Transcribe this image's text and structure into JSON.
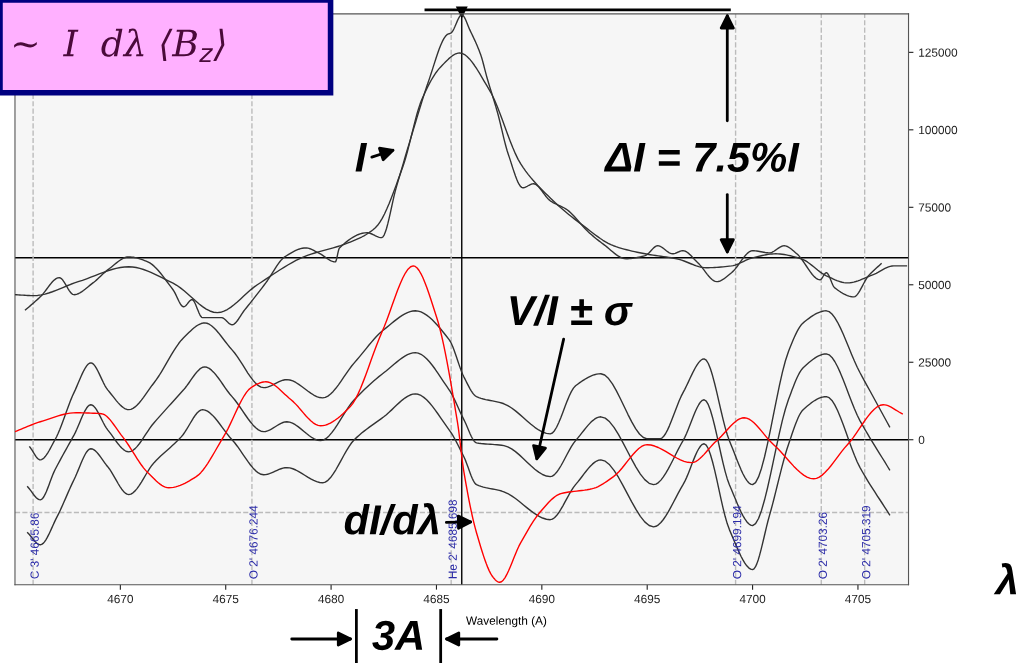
{
  "chart_data": {
    "type": "line",
    "xlabel": "Wavelength (A)",
    "xlim": [
      4665.0,
      4707.4
    ],
    "ylim": [
      -46800,
      137400
    ],
    "xticks": [
      4670,
      4675,
      4680,
      4685,
      4690,
      4695,
      4700,
      4705
    ],
    "yticks": [
      0,
      25000,
      50000,
      75000,
      100000,
      125000
    ],
    "grid": false,
    "legend": false,
    "marker": "none",
    "line_style": "solid",
    "series": [
      {
        "color": "#333333",
        "x": [
          4665.5,
          4666.2,
          4667.1,
          4667.8,
          4668.7,
          4669.4,
          4670.4,
          4671.3,
          4672.5,
          4673.0,
          4673.4,
          4673.9,
          4674.8,
          4675.3,
          4675.9,
          4676.9,
          4677.8,
          4678.8,
          4679.4,
          4680.2,
          4680.4,
          4681.7,
          4682.4,
          4683.1,
          4683.9,
          4684.6,
          4685.5,
          4685.7,
          4686.2,
          4686.6,
          4687.1,
          4687.4,
          4687.9,
          4688.4,
          4689.1,
          4689.6,
          4690.4,
          4691.2,
          4692.2,
          4692.9,
          4694.0,
          4694.9,
          4695.5,
          4696.2,
          4696.7,
          4697.4,
          4698.3,
          4699.0,
          4700.0,
          4700.8,
          4701.5,
          4702.1,
          4703.2,
          4703.5,
          4703.9,
          4704.8,
          4705.5,
          4706.1
        ],
        "values": [
          41900,
          46100,
          52300,
          46800,
          50600,
          54800,
          59000,
          57400,
          48400,
          42900,
          45200,
          39400,
          39400,
          37100,
          41900,
          50600,
          59000,
          61900,
          60300,
          57400,
          61900,
          66800,
          65200,
          81600,
          100000,
          115200,
          130700,
          131300,
          137100,
          132000,
          124200,
          116800,
          105500,
          92300,
          81300,
          82600,
          77100,
          74200,
          67100,
          63200,
          58400,
          59400,
          62600,
          60000,
          61000,
          57100,
          51000,
          53900,
          61000,
          60300,
          62600,
          60000,
          51600,
          53900,
          49000,
          46100,
          52900,
          56800
        ]
      },
      {
        "color": "#333333",
        "x": [
          4665.0,
          4665.9,
          4668.0,
          4670.4,
          4672.5,
          4674.6,
          4676.5,
          4678.7,
          4680.8,
          4682.1,
          4683.4,
          4684.3,
          4685.2,
          4686.1,
          4687.5,
          4689.0,
          4690.4,
          4691.9,
          4693.4,
          4694.9,
          4696.4,
          4697.8,
          4699.0,
          4700.0,
          4701.1,
          4702.3,
          4703.5,
          4704.5,
          4705.7,
          4706.7,
          4707.3
        ],
        "values": [
          46800,
          46500,
          51000,
          55800,
          50500,
          41000,
          50000,
          59000,
          63500,
          68400,
          88000,
          109700,
          120300,
          124800,
          113000,
          89000,
          78000,
          69400,
          62600,
          60000,
          58400,
          55500,
          56100,
          58700,
          60000,
          58400,
          52900,
          50600,
          53200,
          56100,
          56100
        ]
      },
      {
        "color": "#333333",
        "x": [
          4665.7,
          4666.2,
          4666.9,
          4667.8,
          4668.6,
          4669.4,
          4670.4,
          4671.6,
          4673.0,
          4674.0,
          4675.3,
          4676.8,
          4677.9,
          4679.6,
          4681.1,
          4682.5,
          4684.0,
          4685.6,
          4686.3,
          4686.9,
          4688.2,
          4690.4,
          4691.6,
          4692.8,
          4695.0,
          4695.6,
          4696.7,
          4697.7,
          4698.9,
          4700.0,
          4701.7,
          4702.4,
          4703.5,
          4705.1,
          4706.5
        ],
        "values": [
          -2300,
          -6500,
          0,
          15200,
          24800,
          16100,
          9700,
          18400,
          32900,
          37700,
          29000,
          16800,
          19400,
          13500,
          24800,
          35500,
          41600,
          32300,
          20300,
          13900,
          11600,
          1900,
          17400,
          21300,
          300,
          300,
          15200,
          26100,
          -300,
          -14500,
          28400,
          37700,
          41600,
          21600,
          4200
        ]
      },
      {
        "color": "#333333",
        "x": [
          4665.6,
          4666.2,
          4666.9,
          4667.8,
          4668.6,
          4669.4,
          4670.4,
          4671.6,
          4673.0,
          4674.0,
          4675.3,
          4676.8,
          4677.9,
          4679.5,
          4681.1,
          4682.5,
          4684.0,
          4685.6,
          4686.3,
          4686.9,
          4688.2,
          4690.4,
          4691.6,
          4692.8,
          4695.3,
          4696.7,
          4697.7,
          4698.9,
          4700.0,
          4701.7,
          4702.4,
          4703.5,
          4705.1,
          4706.5
        ],
        "values": [
          -15200,
          -19400,
          -9700,
          1500,
          11300,
          3200,
          -3900,
          5500,
          16100,
          23500,
          13900,
          2600,
          5800,
          -300,
          12900,
          21600,
          28100,
          16100,
          6500,
          -1000,
          -1900,
          -11900,
          -300,
          7400,
          -14500,
          -300,
          12900,
          -14500,
          -27700,
          12900,
          23200,
          27700,
          6100,
          -9700
        ]
      },
      {
        "color": "#333333",
        "x": [
          4665.6,
          4666.2,
          4667.0,
          4667.8,
          4668.6,
          4669.4,
          4670.4,
          4671.6,
          4672.9,
          4673.9,
          4675.3,
          4676.8,
          4677.9,
          4679.6,
          4681.1,
          4682.5,
          4684.0,
          4685.6,
          4686.3,
          4686.9,
          4688.2,
          4690.4,
          4691.6,
          4692.8,
          4695.3,
          4696.7,
          4697.7,
          4698.9,
          4700.0,
          4700.8,
          4701.7,
          4702.4,
          4703.5,
          4705.1,
          4706.5
        ],
        "values": [
          -30000,
          -33900,
          -24800,
          -12900,
          -2900,
          -8700,
          -17700,
          -7400,
          1000,
          9700,
          0,
          -11300,
          -9000,
          -13900,
          0,
          7400,
          14800,
          3200,
          -5500,
          -14500,
          -16800,
          -25800,
          -14500,
          -6500,
          -28100,
          -14500,
          -1300,
          -29000,
          -41900,
          -24500,
          -1600,
          9700,
          13900,
          -9000,
          -24200
        ]
      },
      {
        "color": "#ff0000",
        "x": [
          4665.0,
          4666.2,
          4667.9,
          4669.1,
          4670.1,
          4671.3,
          4672.3,
          4673.6,
          4674.9,
          4676.2,
          4676.9,
          4678.1,
          4679.5,
          4680.9,
          4682.4,
          4683.9,
          4685.0,
          4686.0,
          4686.3,
          4686.9,
          4687.7,
          4688.0,
          4689.0,
          4689.9,
          4690.9,
          4692.4,
          4693.4,
          4695.0,
          4697.1,
          4698.3,
          4699.6,
          4701.0,
          4702.9,
          4704.5,
          4706.2,
          4707.1
        ],
        "values": [
          2600,
          5800,
          8700,
          8400,
          1000,
          -10600,
          -15500,
          -11900,
          1000,
          16800,
          18700,
          12900,
          4500,
          10600,
          34500,
          56100,
          39700,
          5500,
          -10300,
          -30000,
          -44500,
          -46000,
          -33200,
          -23500,
          -17400,
          -15800,
          -11900,
          -1600,
          -7400,
          -300,
          7100,
          -1600,
          -12600,
          -1600,
          11300,
          8400
        ]
      }
    ],
    "ref_lines": [
      {
        "axis": "y",
        "value": 0,
        "color": "#000000",
        "line_style": "solid"
      },
      {
        "axis": "y",
        "value": 58700,
        "color": "#000000",
        "line_style": "solid"
      },
      {
        "axis": "y",
        "value": -23500,
        "color": "#bbbbbb",
        "line_style": "dashed"
      },
      {
        "axis": "x",
        "value": 4686.2,
        "color": "#000000",
        "line_style": "solid"
      },
      {
        "axis": "x",
        "value": 4665.86,
        "label": "C 3' 4665.86",
        "color": "#bbbbbb",
        "line_style": "dashed"
      },
      {
        "axis": "x",
        "value": 4676.244,
        "label": "O 2' 4676.244",
        "color": "#bbbbbb",
        "line_style": "dashed"
      },
      {
        "axis": "x",
        "value": 4685.698,
        "label": "He 2' 4685.698",
        "color": "#bbbbbb",
        "line_style": "dashed"
      },
      {
        "axis": "x",
        "value": 4699.194,
        "label": "O 2' 4699.194",
        "color": "#bbbbbb",
        "line_style": "dashed"
      },
      {
        "axis": "x",
        "value": 4703.26,
        "label": "O 2' 4703.26",
        "color": "#bbbbbb",
        "line_style": "dashed"
      },
      {
        "axis": "x",
        "value": 4705.319,
        "label": "O 2' 4705.319",
        "color": "#bbbbbb",
        "line_style": "dashed"
      }
    ],
    "annotations": [
      "I",
      "ΔI = 7.5%I",
      "V/I ± σ",
      "dI/dλ",
      "3A",
      "λ",
      "~  I  dλ ⟨B$_{z}$⟩"
    ]
  }
}
